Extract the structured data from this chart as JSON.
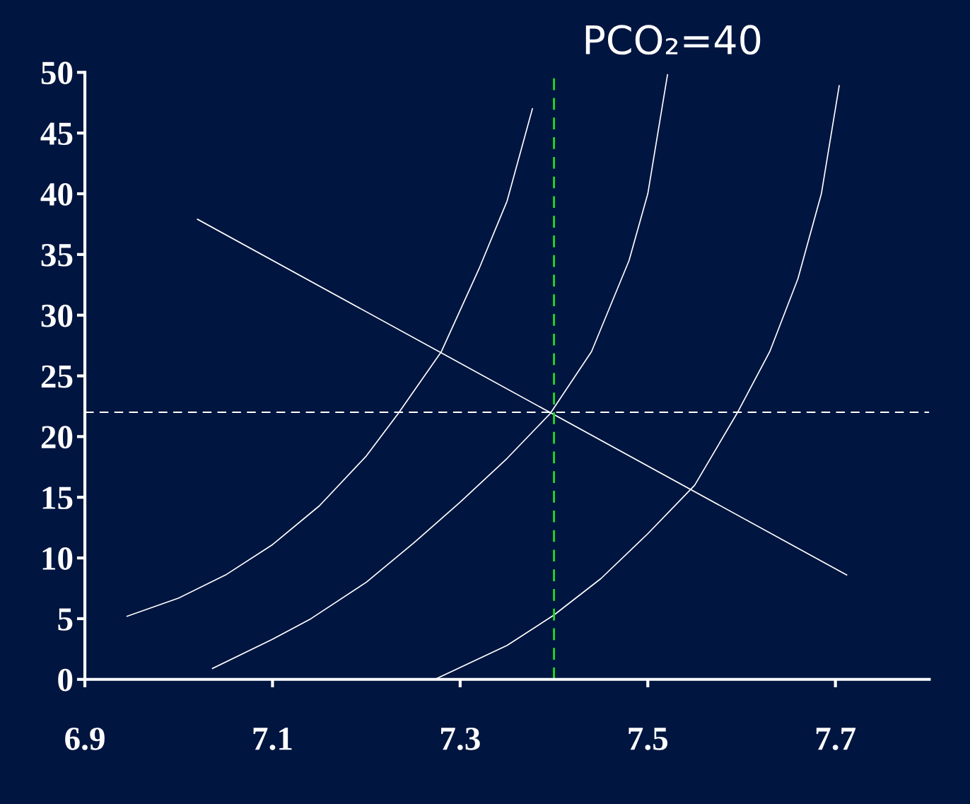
{
  "chart_data": {
    "type": "line",
    "annotations": [
      "PCO₂=40"
    ],
    "series": [
      {
        "color": "#ffffff",
        "x": [
          6.945,
          7.0,
          7.05,
          7.1,
          7.15,
          7.2,
          7.234,
          7.28,
          7.32,
          7.35,
          7.377
        ],
        "values": [
          5.2,
          6.7,
          8.6,
          11.1,
          14.3,
          18.4,
          21.9,
          27.0,
          33.8,
          39.4,
          47.0
        ]
      },
      {
        "color": "#ffffff",
        "x": [
          7.036,
          7.1,
          7.141,
          7.2,
          7.25,
          7.3,
          7.35,
          7.396,
          7.44,
          7.48,
          7.5,
          7.521
        ],
        "values": [
          0.9,
          3.3,
          5.0,
          8.0,
          11.2,
          14.6,
          18.2,
          21.9,
          27.0,
          34.5,
          40.0,
          49.8
        ]
      },
      {
        "color": "#ffffff",
        "x": [
          7.273,
          7.35,
          7.4,
          7.45,
          7.5,
          7.55,
          7.595,
          7.63,
          7.66,
          7.685,
          7.704
        ],
        "values": [
          0.0,
          2.8,
          5.3,
          8.3,
          12.0,
          16.0,
          21.9,
          27.0,
          33.0,
          40.0,
          48.9
        ]
      },
      {
        "color": "#ffffff",
        "x": [
          7.02,
          7.712
        ],
        "values": [
          37.9,
          8.6
        ]
      }
    ],
    "ref_lines": [
      {
        "axis": "y",
        "value": 22,
        "color": "#ffffff",
        "line_style": "dashed"
      },
      {
        "axis": "x",
        "value": 7.4,
        "color": "#22dd22",
        "line_style": "dashed"
      }
    ],
    "xlim": [
      6.9,
      7.8
    ],
    "xticks": [
      6.9,
      7.1,
      7.3,
      7.5,
      7.7
    ],
    "ylim": [
      0,
      50
    ],
    "yticks": [
      0,
      5,
      10,
      15,
      20,
      25,
      30,
      35,
      40,
      45,
      50
    ],
    "grid": false,
    "legend": false,
    "marker": "none",
    "line_style": "solid"
  }
}
